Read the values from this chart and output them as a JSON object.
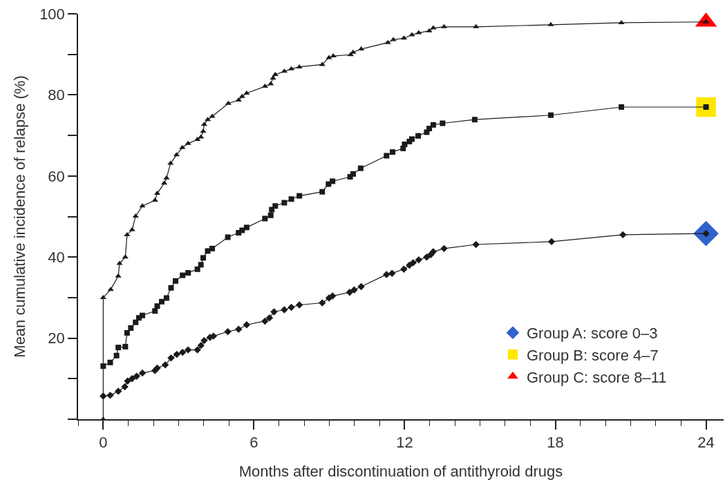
{
  "chart_data": {
    "type": "line",
    "xlabel": "Months after discontinuation of antithyroid drugs",
    "ylabel": "Mean cumulative incidence of relapse (%)",
    "xlim": [
      -1,
      24.7
    ],
    "xticks": [
      {
        "value": -1,
        "label": null
      },
      0,
      {
        "value": 1,
        "label": null
      },
      {
        "value": 2,
        "label": null
      },
      {
        "value": 3,
        "label": null
      },
      {
        "value": 4,
        "label": null
      },
      {
        "value": 5,
        "label": null
      },
      6,
      {
        "value": 7,
        "label": null
      },
      {
        "value": 8,
        "label": null
      },
      {
        "value": 9,
        "label": null
      },
      {
        "value": 10,
        "label": null
      },
      {
        "value": 11,
        "label": null
      },
      12,
      {
        "value": 13,
        "label": null
      },
      {
        "value": 14,
        "label": null
      },
      {
        "value": 15,
        "label": null
      },
      {
        "value": 16,
        "label": null
      },
      {
        "value": 17,
        "label": null
      },
      18,
      {
        "value": 19,
        "label": null
      },
      {
        "value": 20,
        "label": null
      },
      {
        "value": 21,
        "label": null
      },
      {
        "value": 22,
        "label": null
      },
      {
        "value": 23,
        "label": null
      },
      24
    ],
    "ylim": [
      0,
      100
    ],
    "yticks": [
      {
        "value": 0,
        "label": null
      },
      {
        "value": 10,
        "label": null
      },
      20,
      {
        "value": 30,
        "label": null
      },
      40,
      {
        "value": 50,
        "label": null
      },
      60,
      {
        "value": 70,
        "label": null
      },
      80,
      {
        "value": 90,
        "label": null
      },
      100
    ],
    "legend": "bottom right",
    "line_style": "solid",
    "series": [
      {
        "type": "scatter",
        "name": "Group A: score 0–3",
        "color": "#3063cc",
        "marker": "diamond",
        "x": [
          24
        ],
        "values": [
          45.8
        ]
      },
      {
        "type": "scatter",
        "name": "Group B: score 4–7",
        "color": "#ffe600",
        "marker": "square",
        "x": [
          24
        ],
        "values": [
          77
        ]
      },
      {
        "type": "scatter",
        "name": "Group C: score 8–11",
        "color": "#ff0000",
        "marker": "triangle",
        "x": [
          24
        ],
        "values": [
          98
        ]
      },
      {
        "color": "#1a1a1a",
        "marker": "diamond",
        "x": [
          0,
          0.28,
          0.6,
          0.86,
          0.97,
          1.15,
          1.33,
          1.56,
          2.06,
          2.15,
          2.47,
          2.7,
          2.93,
          3.16,
          3.38,
          3.75,
          3.89,
          4.02,
          4.25,
          4.39,
          4.96,
          5.39,
          5.71,
          6.44,
          6.62,
          6.8,
          7.21,
          7.49,
          7.81,
          8.72,
          8.99,
          9.13,
          9.81,
          9.99,
          10.27,
          11.28,
          11.5,
          11.97,
          12.19,
          12.34,
          12.56,
          12.88,
          13.04,
          13.14,
          13.57,
          14.84,
          17.85,
          20.69,
          24
        ],
        "values": [
          5.7,
          5.9,
          6.9,
          8,
          9.4,
          10,
          10.6,
          11.4,
          12,
          12.6,
          13.4,
          15.1,
          16,
          16.5,
          17.1,
          17.1,
          18.2,
          19.4,
          20.2,
          20.5,
          21.6,
          22.2,
          23.3,
          24.2,
          25,
          26.5,
          27,
          27.6,
          28.2,
          28.7,
          29.9,
          30.4,
          31.3,
          31.9,
          32.7,
          35.7,
          36,
          37,
          38,
          38.6,
          39.3,
          40,
          40.6,
          41.3,
          42.1,
          43.1,
          43.8,
          45.5,
          45.8
        ]
      },
      {
        "color": "#1a1a1a",
        "marker": "square",
        "x": [
          0,
          0.28,
          0.53,
          0.6,
          0.88,
          0.95,
          1.1,
          1.29,
          1.42,
          1.56,
          2.06,
          2.15,
          2.33,
          2.52,
          2.7,
          2.88,
          3.16,
          3.38,
          3.75,
          3.89,
          3.98,
          4.16,
          4.34,
          4.96,
          5.39,
          5.53,
          5.71,
          6.44,
          6.67,
          6.71,
          6.85,
          7.21,
          7.49,
          7.81,
          8.72,
          8.97,
          9.13,
          9.83,
          9.95,
          10.25,
          11.28,
          11.52,
          11.94,
          12,
          12.19,
          12.29,
          12.54,
          12.88,
          12.98,
          13.14,
          13.51,
          14.79,
          17.82,
          20.63,
          24
        ],
        "values": [
          13.1,
          14,
          15.7,
          17.7,
          17.9,
          21.3,
          22.5,
          23.9,
          25,
          25.6,
          26.7,
          27.9,
          29,
          29.9,
          32.4,
          34.1,
          35.5,
          36.1,
          37,
          38.1,
          39.8,
          41.5,
          42.1,
          44.9,
          46,
          46.6,
          47.3,
          49.5,
          50.3,
          51.7,
          52.6,
          53.4,
          54.3,
          55.1,
          56.1,
          58,
          58.7,
          59.8,
          60.5,
          61.9,
          65,
          65.9,
          66.8,
          67.8,
          68.5,
          69.1,
          69.9,
          70.8,
          71.7,
          72.6,
          73,
          73.9,
          75,
          77,
          77
        ]
      },
      {
        "color": "#1a1a1a",
        "marker": "triangle",
        "x": [
          0,
          0,
          0.3,
          0.6,
          0.65,
          0.88,
          0.95,
          1.15,
          1.29,
          1.56,
          2.06,
          2.15,
          2.43,
          2.52,
          2.68,
          2.92,
          3.15,
          3.38,
          3.75,
          3.89,
          3.98,
          4.02,
          4.16,
          4.34,
          4.98,
          5.39,
          5.53,
          5.71,
          6.44,
          6.67,
          6.76,
          6.85,
          7.21,
          7.49,
          7.81,
          8.72,
          8.99,
          9.16,
          9.85,
          9.95,
          10.27,
          11.33,
          11.55,
          11.97,
          12.29,
          12.56,
          12.98,
          13.14,
          13.57,
          14.84,
          17.82,
          20.63,
          24
        ],
        "values": [
          0,
          30,
          32,
          35.3,
          38.4,
          40,
          45.5,
          46.7,
          50.1,
          52.6,
          54,
          55.7,
          58.2,
          59.5,
          63.1,
          65.2,
          67,
          68,
          69,
          69.6,
          71,
          72.7,
          73.9,
          74.7,
          77.9,
          78.7,
          79.6,
          80.4,
          82.1,
          82.7,
          84.1,
          85,
          85.8,
          86.4,
          86.9,
          87.5,
          89.2,
          89.6,
          89.9,
          90.5,
          91.3,
          92.9,
          93.6,
          94,
          94.8,
          95.3,
          95.8,
          96.5,
          96.8,
          96.8,
          97.3,
          97.8,
          98
        ]
      }
    ]
  }
}
